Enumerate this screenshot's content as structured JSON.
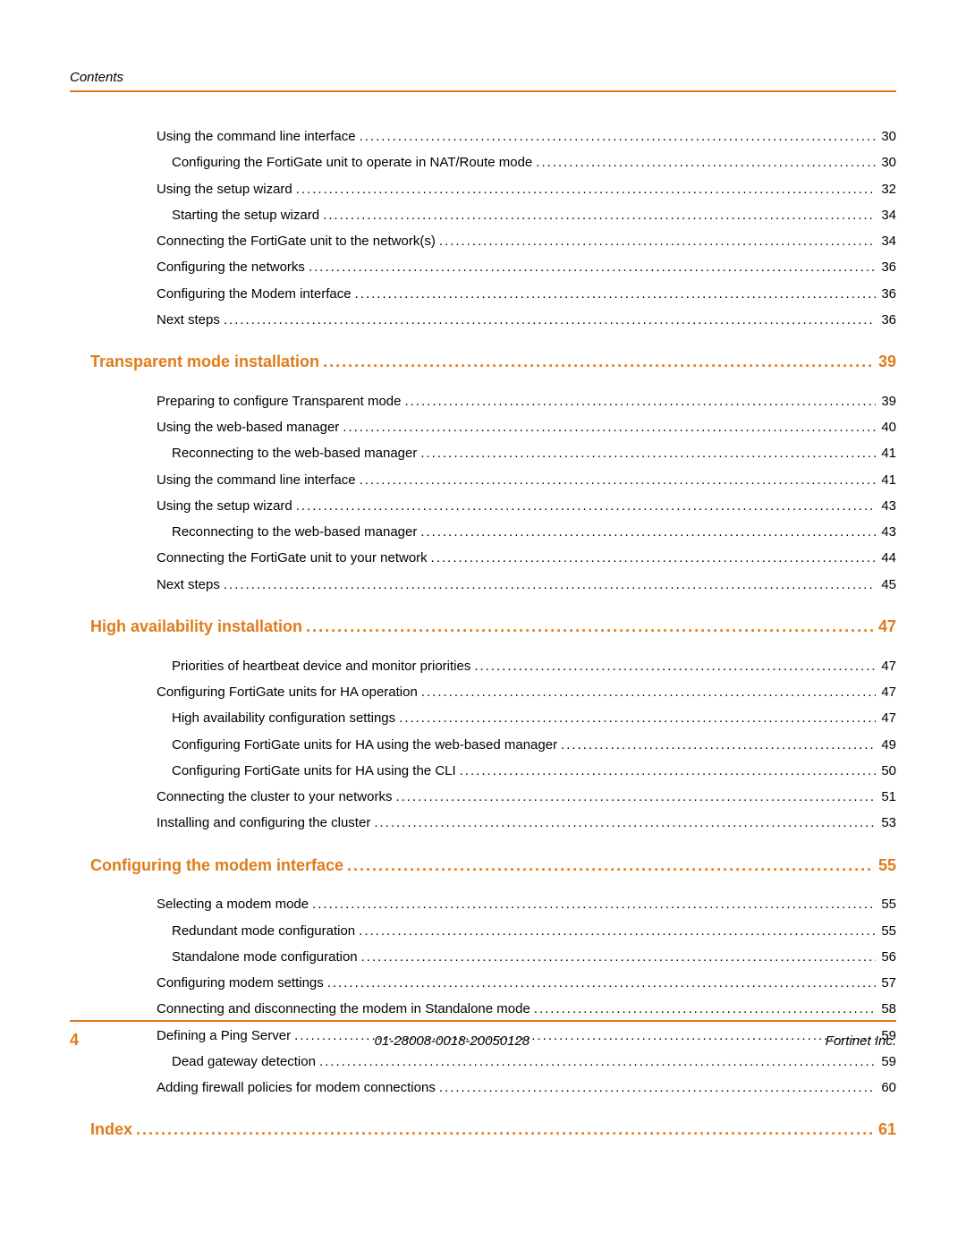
{
  "header_label": "Contents",
  "colors": {
    "accent": "#e07b1a",
    "text": "#000000",
    "background": "#ffffff"
  },
  "toc": [
    {
      "level": 1,
      "title": "Using the command line interface",
      "page": "30"
    },
    {
      "level": 2,
      "title": "Configuring the FortiGate unit to operate in NAT/Route mode",
      "page": "30"
    },
    {
      "level": 1,
      "title": "Using the setup wizard",
      "page": "32"
    },
    {
      "level": 2,
      "title": "Starting the setup wizard",
      "page": "34"
    },
    {
      "level": 1,
      "title": "Connecting the FortiGate unit to the network(s)",
      "page": "34"
    },
    {
      "level": 1,
      "title": "Configuring the networks",
      "page": "36"
    },
    {
      "level": 1,
      "title": "Configuring the Modem interface",
      "page": "36"
    },
    {
      "level": 1,
      "title": "Next steps",
      "page": "36"
    },
    {
      "level": "section",
      "title": "Transparent mode installation",
      "page": "39"
    },
    {
      "level": 1,
      "title": "Preparing to configure Transparent mode",
      "page": "39"
    },
    {
      "level": 1,
      "title": "Using the web-based manager",
      "page": "40"
    },
    {
      "level": 2,
      "title": "Reconnecting to the web-based manager",
      "page": "41"
    },
    {
      "level": 1,
      "title": "Using the command line interface",
      "page": "41"
    },
    {
      "level": 1,
      "title": "Using the setup wizard",
      "page": "43"
    },
    {
      "level": 2,
      "title": "Reconnecting to the web-based manager",
      "page": "43"
    },
    {
      "level": 1,
      "title": "Connecting the FortiGate unit to your network",
      "page": "44"
    },
    {
      "level": 1,
      "title": "Next steps",
      "page": "45"
    },
    {
      "level": "section",
      "title": "High availability installation",
      "page": "47"
    },
    {
      "level": 2,
      "title": "Priorities of heartbeat device and monitor priorities",
      "page": "47"
    },
    {
      "level": 1,
      "title": "Configuring FortiGate units for HA operation",
      "page": "47"
    },
    {
      "level": 2,
      "title": "High availability configuration settings",
      "page": "47"
    },
    {
      "level": 2,
      "title": "Configuring FortiGate units for HA using the web-based manager",
      "page": "49"
    },
    {
      "level": 2,
      "title": "Configuring FortiGate units for HA using the CLI",
      "page": "50"
    },
    {
      "level": 1,
      "title": "Connecting the cluster to your networks",
      "page": "51"
    },
    {
      "level": 1,
      "title": "Installing and configuring the cluster",
      "page": "53"
    },
    {
      "level": "section",
      "title": "Configuring the modem interface",
      "page": "55"
    },
    {
      "level": 1,
      "title": "Selecting a modem mode",
      "page": "55"
    },
    {
      "level": 2,
      "title": "Redundant mode configuration",
      "page": "55"
    },
    {
      "level": 2,
      "title": "Standalone mode configuration",
      "page": "56"
    },
    {
      "level": 1,
      "title": "Configuring modem settings",
      "page": "57"
    },
    {
      "level": 1,
      "title": "Connecting and disconnecting the modem in Standalone mode",
      "page": "58"
    },
    {
      "level": 1,
      "title": "Defining a Ping Server",
      "page": "59"
    },
    {
      "level": 2,
      "title": "Dead gateway detection",
      "page": "59"
    },
    {
      "level": 1,
      "title": "Adding firewall policies for modem connections",
      "page": "60"
    },
    {
      "level": "section",
      "title": "Index",
      "page": "61"
    }
  ],
  "footer": {
    "page_number": "4",
    "doc_id": "01-28008-0018-20050128",
    "company": "Fortinet Inc."
  }
}
